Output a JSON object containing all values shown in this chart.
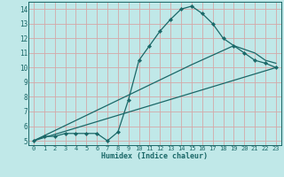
{
  "xlabel": "Humidex (Indice chaleur)",
  "bg_color": "#c0e8e8",
  "grid_color": "#d4a8a8",
  "line_color": "#1a6868",
  "xlim": [
    -0.5,
    23.5
  ],
  "ylim": [
    4.7,
    14.5
  ],
  "yticks": [
    5,
    6,
    7,
    8,
    9,
    10,
    11,
    12,
    13,
    14
  ],
  "xticks": [
    0,
    1,
    2,
    3,
    4,
    5,
    6,
    7,
    8,
    9,
    10,
    11,
    12,
    13,
    14,
    15,
    16,
    17,
    18,
    19,
    20,
    21,
    22,
    23
  ],
  "line1_x": [
    0,
    1,
    2,
    3,
    4,
    5,
    6,
    7,
    8,
    9,
    10,
    11,
    12,
    13,
    14,
    15,
    16,
    17,
    18,
    19,
    20,
    21,
    22,
    23
  ],
  "line1_y": [
    5.0,
    5.3,
    5.3,
    5.5,
    5.5,
    5.5,
    5.5,
    5.0,
    5.6,
    7.8,
    10.5,
    11.5,
    12.5,
    13.3,
    14.0,
    14.2,
    13.7,
    13.0,
    12.0,
    11.5,
    11.0,
    10.5,
    10.3,
    10.0
  ],
  "line2_x": [
    0,
    15,
    19,
    21,
    22,
    23
  ],
  "line2_y": [
    5.0,
    10.2,
    11.5,
    11.0,
    10.5,
    10.3
  ],
  "line3_x": [
    0,
    23
  ],
  "line3_y": [
    5.0,
    10.0
  ]
}
